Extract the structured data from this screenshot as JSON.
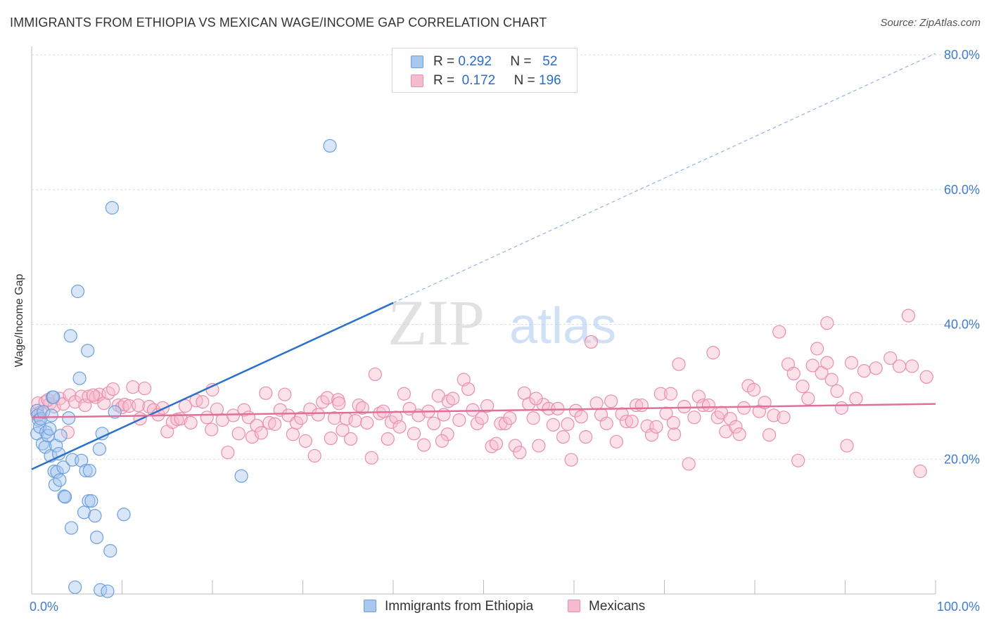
{
  "title": "IMMIGRANTS FROM ETHIOPIA VS MEXICAN WAGE/INCOME GAP CORRELATION CHART",
  "source": "Source: ZipAtlas.com",
  "watermark": {
    "zip": "ZIP",
    "atlas": "atlas"
  },
  "legend": {
    "r_label": "R =",
    "n_label": "N =",
    "series": [
      {
        "name": "Immigrants from Ethiopia",
        "r": "0.292",
        "n": "52"
      },
      {
        "name": "Mexicans",
        "r": "0.172",
        "n": "196"
      }
    ]
  },
  "colors": {
    "blue_fill": "#a9c8f0",
    "blue_stroke": "#6c9fdc",
    "blue_line": "#2a70cc",
    "pink_fill": "#f6bccd",
    "pink_stroke": "#e98fac",
    "pink_line": "#e0709a",
    "axis_text": "#3f7bd0"
  },
  "chart_data": {
    "type": "scatter",
    "title": "IMMIGRANTS FROM ETHIOPIA VS MEXICAN WAGE/INCOME GAP CORRELATION CHART",
    "xlabel": "",
    "ylabel": "Wage/Income Gap",
    "xlim": [
      0,
      100
    ],
    "ylim": [
      0,
      80
    ],
    "x_tick_labels": [
      "0.0%",
      "100.0%"
    ],
    "y_ticks": [
      20,
      40,
      60,
      80
    ],
    "y_tick_labels": [
      "20.0%",
      "40.0%",
      "60.0%",
      "80.0%"
    ],
    "legend_position": "top-center",
    "series": [
      {
        "name": "Immigrants from Ethiopia",
        "r": 0.292,
        "n": 52,
        "trend": {
          "x0": 0,
          "y0": 18.5,
          "x1": 40,
          "y1": 43.2,
          "dashed_to_x": 100,
          "dashed_to_y": 80.2
        },
        "points": [
          [
            0.6,
            27.2
          ],
          [
            0.6,
            23.8
          ],
          [
            0.7,
            26.5
          ],
          [
            0.8,
            25.8
          ],
          [
            0.9,
            24.8
          ],
          [
            1.0,
            26.0
          ],
          [
            1.2,
            22.3
          ],
          [
            1.3,
            27.0
          ],
          [
            1.5,
            21.8
          ],
          [
            1.6,
            24.0
          ],
          [
            1.8,
            23.5
          ],
          [
            2.0,
            24.5
          ],
          [
            2.1,
            20.5
          ],
          [
            2.2,
            26.5
          ],
          [
            2.3,
            29.2
          ],
          [
            2.4,
            29.2
          ],
          [
            2.5,
            18.2
          ],
          [
            2.6,
            16.2
          ],
          [
            2.7,
            22.0
          ],
          [
            2.8,
            18.1
          ],
          [
            3.0,
            20.8
          ],
          [
            3.1,
            16.9
          ],
          [
            3.2,
            23.5
          ],
          [
            3.5,
            18.8
          ],
          [
            3.6,
            14.5
          ],
          [
            3.7,
            14.4
          ],
          [
            4.1,
            26.1
          ],
          [
            4.3,
            38.3
          ],
          [
            4.4,
            9.8
          ],
          [
            4.5,
            19.9
          ],
          [
            4.8,
            1.0
          ],
          [
            5.1,
            44.9
          ],
          [
            5.3,
            32.0
          ],
          [
            5.5,
            19.8
          ],
          [
            5.8,
            12.1
          ],
          [
            6.0,
            18.3
          ],
          [
            6.2,
            36.1
          ],
          [
            6.3,
            13.8
          ],
          [
            6.4,
            18.3
          ],
          [
            6.6,
            13.8
          ],
          [
            7.0,
            11.6
          ],
          [
            7.2,
            8.4
          ],
          [
            7.5,
            21.5
          ],
          [
            7.6,
            0.6
          ],
          [
            7.8,
            23.8
          ],
          [
            8.4,
            0.4
          ],
          [
            8.7,
            6.4
          ],
          [
            8.9,
            57.3
          ],
          [
            9.2,
            27.0
          ],
          [
            10.2,
            11.8
          ],
          [
            23.2,
            17.5
          ],
          [
            33.0,
            66.5
          ]
        ]
      },
      {
        "name": "Mexicans",
        "r": 0.172,
        "n": 196,
        "trend": {
          "x0": 0,
          "y0": 26.2,
          "x1": 100,
          "y1": 28.2
        },
        "points": [
          [
            0.6,
            26.8
          ],
          [
            0.7,
            28.3
          ],
          [
            1.0,
            27.0
          ],
          [
            1.5,
            28.5
          ],
          [
            2.0,
            28.2
          ],
          [
            2.5,
            27.8
          ],
          [
            3.1,
            29.0
          ],
          [
            3.5,
            28.2
          ],
          [
            4.0,
            24.0
          ],
          [
            4.2,
            29.5
          ],
          [
            4.8,
            28.5
          ],
          [
            5.5,
            29.3
          ],
          [
            5.9,
            28.0
          ],
          [
            6.3,
            29.3
          ],
          [
            7.1,
            29.2
          ],
          [
            7.5,
            29.6
          ],
          [
            8.0,
            28.3
          ],
          [
            8.5,
            29.8
          ],
          [
            9.0,
            30.4
          ],
          [
            9.6,
            28.0
          ],
          [
            10.0,
            27.7
          ],
          [
            10.3,
            28.1
          ],
          [
            10.8,
            27.9
          ],
          [
            11.2,
            30.7
          ],
          [
            11.8,
            28.0
          ],
          [
            12.5,
            30.5
          ],
          [
            13.0,
            27.8
          ],
          [
            13.5,
            27.3
          ],
          [
            14.0,
            26.6
          ],
          [
            14.5,
            27.6
          ],
          [
            15.0,
            24.1
          ],
          [
            15.6,
            25.5
          ],
          [
            16.1,
            25.9
          ],
          [
            16.5,
            26.0
          ],
          [
            17.0,
            27.9
          ],
          [
            17.6,
            25.4
          ],
          [
            18.2,
            28.7
          ],
          [
            18.9,
            28.5
          ],
          [
            19.4,
            26.2
          ],
          [
            19.9,
            24.4
          ],
          [
            20.5,
            27.4
          ],
          [
            21.1,
            25.8
          ],
          [
            21.7,
            21.0
          ],
          [
            22.3,
            26.5
          ],
          [
            22.9,
            23.8
          ],
          [
            23.5,
            27.3
          ],
          [
            24.0,
            26.2
          ],
          [
            24.4,
            23.3
          ],
          [
            24.9,
            25.0
          ],
          [
            25.4,
            23.9
          ],
          [
            25.9,
            29.8
          ],
          [
            26.3,
            25.4
          ],
          [
            26.9,
            25.2
          ],
          [
            27.5,
            27.3
          ],
          [
            28.0,
            29.6
          ],
          [
            28.4,
            26.5
          ],
          [
            28.9,
            23.7
          ],
          [
            29.3,
            25.4
          ],
          [
            29.8,
            26.1
          ],
          [
            30.3,
            22.7
          ],
          [
            30.8,
            27.4
          ],
          [
            31.3,
            20.5
          ],
          [
            31.7,
            26.6
          ],
          [
            32.2,
            28.5
          ],
          [
            32.7,
            29.1
          ],
          [
            33.1,
            23.1
          ],
          [
            33.5,
            26.1
          ],
          [
            33.9,
            28.8
          ],
          [
            34.4,
            24.3
          ],
          [
            34.8,
            26.0
          ],
          [
            35.3,
            23.0
          ],
          [
            35.8,
            25.7
          ],
          [
            36.2,
            28.0
          ],
          [
            36.6,
            27.6
          ],
          [
            37.1,
            25.4
          ],
          [
            37.6,
            20.2
          ],
          [
            38.0,
            32.6
          ],
          [
            38.5,
            26.8
          ],
          [
            38.9,
            27.1
          ],
          [
            39.4,
            23.0
          ],
          [
            39.8,
            25.5
          ],
          [
            40.3,
            26.2
          ],
          [
            40.7,
            24.8
          ],
          [
            41.2,
            29.7
          ],
          [
            41.8,
            27.5
          ],
          [
            42.3,
            23.8
          ],
          [
            42.8,
            26.5
          ],
          [
            43.4,
            22.1
          ],
          [
            43.9,
            27.1
          ],
          [
            44.5,
            25.3
          ],
          [
            45.0,
            29.4
          ],
          [
            45.6,
            26.6
          ],
          [
            46.1,
            28.6
          ],
          [
            46.6,
            29.0
          ],
          [
            47.3,
            25.8
          ],
          [
            47.8,
            31.8
          ],
          [
            48.3,
            30.4
          ],
          [
            48.8,
            27.3
          ],
          [
            49.3,
            25.3
          ],
          [
            49.8,
            26.1
          ],
          [
            50.4,
            27.9
          ],
          [
            50.9,
            21.9
          ],
          [
            51.4,
            22.3
          ],
          [
            51.9,
            25.3
          ],
          [
            52.4,
            25.3
          ],
          [
            52.9,
            26.1
          ],
          [
            53.5,
            22.0
          ],
          [
            54.0,
            21.0
          ],
          [
            54.5,
            29.8
          ],
          [
            55.0,
            28.2
          ],
          [
            55.5,
            26.1
          ],
          [
            56.1,
            22.0
          ],
          [
            56.6,
            28.1
          ],
          [
            57.2,
            27.5
          ],
          [
            57.7,
            25.1
          ],
          [
            58.2,
            27.5
          ],
          [
            58.8,
            23.3
          ],
          [
            59.3,
            25.2
          ],
          [
            59.7,
            19.9
          ],
          [
            60.2,
            27.2
          ],
          [
            60.8,
            26.3
          ],
          [
            61.3,
            23.3
          ],
          [
            61.9,
            37.4
          ],
          [
            62.5,
            28.3
          ],
          [
            63.0,
            26.6
          ],
          [
            63.6,
            25.3
          ],
          [
            64.1,
            28.6
          ],
          [
            64.7,
            22.6
          ],
          [
            65.3,
            26.7
          ],
          [
            65.8,
            25.6
          ],
          [
            66.4,
            25.6
          ],
          [
            66.9,
            28.0
          ],
          [
            67.5,
            28.0
          ],
          [
            68.1,
            24.9
          ],
          [
            68.6,
            23.6
          ],
          [
            69.1,
            24.8
          ],
          [
            69.6,
            29.7
          ],
          [
            70.2,
            26.8
          ],
          [
            70.7,
            29.7
          ],
          [
            71.1,
            23.7
          ],
          [
            71.6,
            34.1
          ],
          [
            72.2,
            27.8
          ],
          [
            72.7,
            19.3
          ],
          [
            73.3,
            26.2
          ],
          [
            73.8,
            29.3
          ],
          [
            74.3,
            28.0
          ],
          [
            74.9,
            28.0
          ],
          [
            75.4,
            35.8
          ],
          [
            75.9,
            26.2
          ],
          [
            76.3,
            26.9
          ],
          [
            76.8,
            24.1
          ],
          [
            77.3,
            26.0
          ],
          [
            77.9,
            24.8
          ],
          [
            78.3,
            23.7
          ],
          [
            78.8,
            27.6
          ],
          [
            79.3,
            30.9
          ],
          [
            79.9,
            30.3
          ],
          [
            80.5,
            27.1
          ],
          [
            81.1,
            28.4
          ],
          [
            81.6,
            23.6
          ],
          [
            82.1,
            26.5
          ],
          [
            82.7,
            38.9
          ],
          [
            83.2,
            26.2
          ],
          [
            83.7,
            34.1
          ],
          [
            84.3,
            32.7
          ],
          [
            84.8,
            19.8
          ],
          [
            85.3,
            30.8
          ],
          [
            85.9,
            29.0
          ],
          [
            86.4,
            33.9
          ],
          [
            86.9,
            36.4
          ],
          [
            87.4,
            32.8
          ],
          [
            88.0,
            34.3
          ],
          [
            88.5,
            31.8
          ],
          [
            89.1,
            30.1
          ],
          [
            89.6,
            27.6
          ],
          [
            90.2,
            22.0
          ],
          [
            90.7,
            34.3
          ],
          [
            91.2,
            29.0
          ],
          [
            92.1,
            33.1
          ],
          [
            93.4,
            33.5
          ],
          [
            95.0,
            35.0
          ],
          [
            96.0,
            33.8
          ],
          [
            97.4,
            33.8
          ],
          [
            99.0,
            32.2
          ],
          [
            1.8,
            28.8
          ],
          [
            6.8,
            29.5
          ],
          [
            12.0,
            26.0
          ],
          [
            20.0,
            30.3
          ],
          [
            34.0,
            28.3
          ],
          [
            46.0,
            23.7
          ],
          [
            55.8,
            29.0
          ],
          [
            71.0,
            25.4
          ],
          [
            88.0,
            40.2
          ],
          [
            97.0,
            41.3
          ],
          [
            98.3,
            18.2
          ],
          [
            45.4,
            22.7
          ]
        ]
      }
    ]
  }
}
